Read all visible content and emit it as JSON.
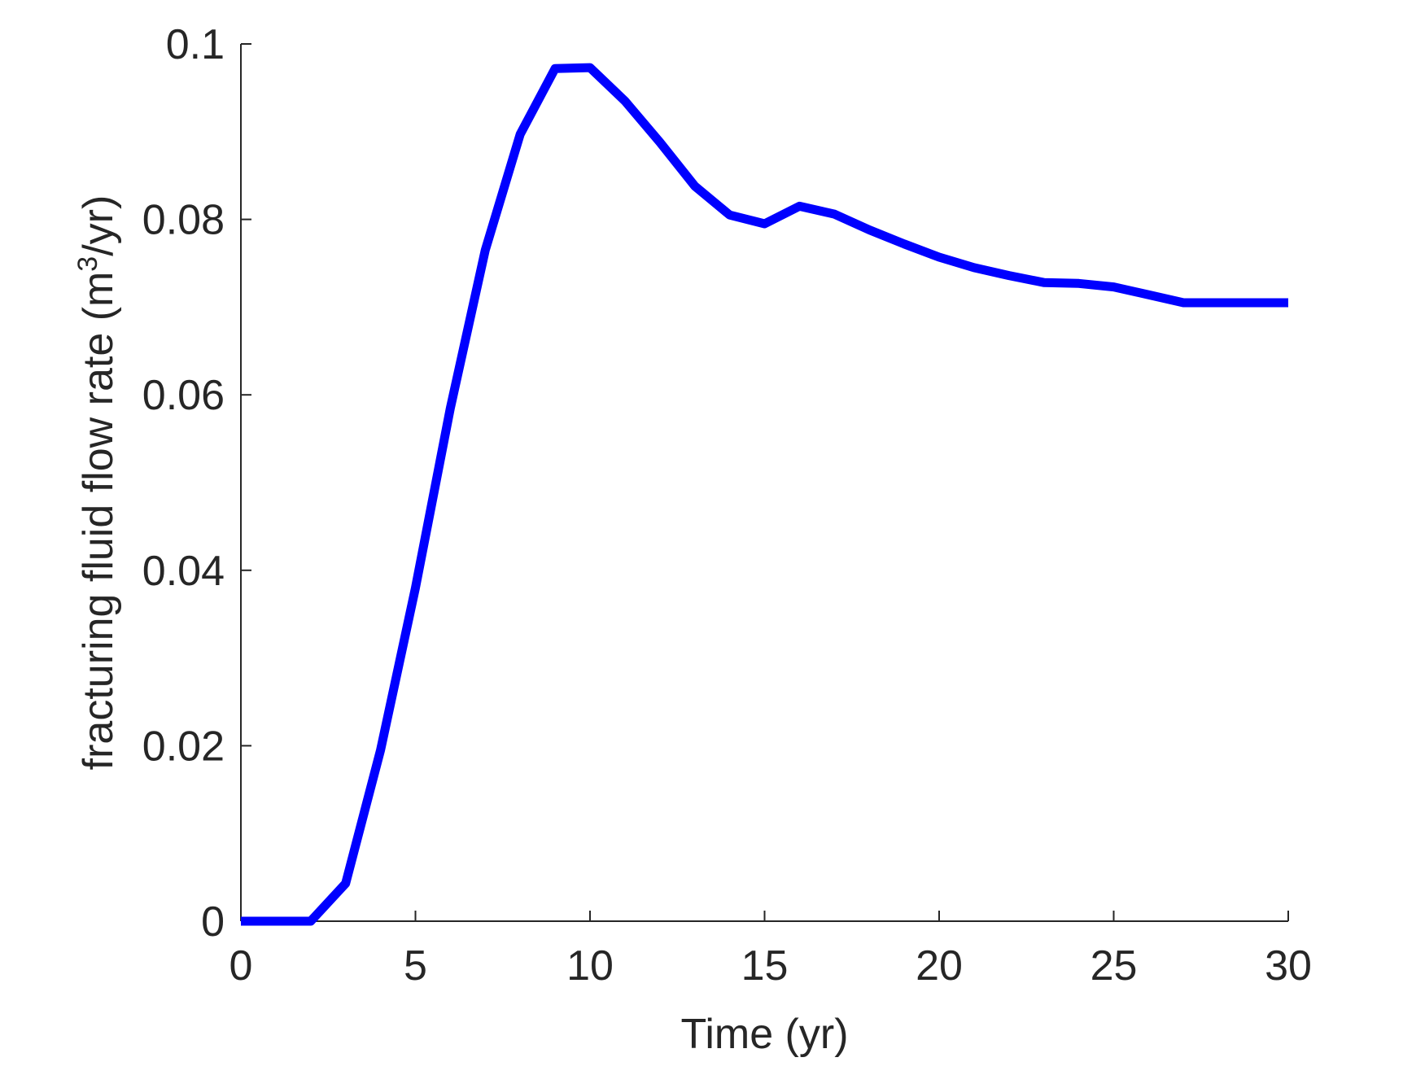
{
  "chart_data": {
    "type": "line",
    "xlabel": "Time (yr)",
    "ylabel": {
      "prefix": "fracturing fluid flow rate (m",
      "superscript": "3",
      "suffix": "/yr)"
    },
    "xlim": [
      0,
      30
    ],
    "ylim": [
      0,
      0.1
    ],
    "xticks": [
      0,
      5,
      10,
      15,
      20,
      25,
      30
    ],
    "yticks": [
      0,
      0.02,
      0.04,
      0.06,
      0.08,
      0.1
    ],
    "xtick_labels": [
      "0",
      "5",
      "10",
      "15",
      "20",
      "25",
      "30"
    ],
    "ytick_labels": [
      "0",
      "0.02",
      "0.04",
      "0.06",
      "0.08",
      "0.1"
    ],
    "grid": false,
    "line_color": "#0000ff",
    "axis_color": "#262626",
    "series": [
      {
        "x": [
          0,
          1,
          2,
          3,
          4,
          5,
          6,
          7,
          8,
          9,
          10,
          11,
          12,
          13,
          14,
          15,
          16,
          17,
          18,
          19,
          20,
          21,
          22,
          23,
          24,
          25,
          26,
          27,
          28,
          29,
          30
        ],
        "y": [
          0,
          0,
          0,
          0.0043,
          0.0195,
          0.038,
          0.0585,
          0.0765,
          0.0897,
          0.0972,
          0.0973,
          0.0935,
          0.0888,
          0.0838,
          0.0805,
          0.0795,
          0.0815,
          0.0806,
          0.0788,
          0.0772,
          0.0757,
          0.0745,
          0.0736,
          0.0728,
          0.0727,
          0.0723,
          0.0714,
          0.0705,
          0.0705,
          0.0705,
          0.0705
        ]
      }
    ]
  }
}
